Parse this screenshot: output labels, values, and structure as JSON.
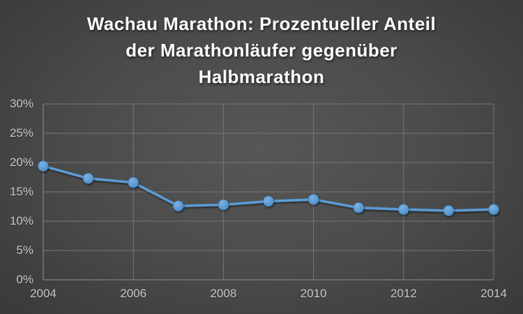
{
  "title": {
    "text": "Wachau Marathon: Prozentueller Anteil der Marathonläufer gegenüber Halbmarathon",
    "lines": [
      "Wachau Marathon: Prozentueller Anteil",
      "der Marathonläufer gegenüber",
      "Halbmarathon"
    ]
  },
  "chart_data": {
    "type": "line",
    "title": "Wachau Marathon: Prozentueller Anteil der Marathonläufer gegenüber Halbmarathon",
    "xlabel": "",
    "ylabel": "",
    "unit": "%",
    "x": [
      2004,
      2005,
      2006,
      2007,
      2008,
      2009,
      2010,
      2011,
      2012,
      2013,
      2014
    ],
    "values": [
      19.4,
      17.3,
      16.6,
      12.6,
      12.8,
      13.4,
      13.7,
      12.3,
      12.0,
      11.8,
      12.0
    ],
    "xlim": [
      2004,
      2014
    ],
    "ylim": [
      0,
      30
    ],
    "x_ticks": {
      "values": [
        2004,
        2006,
        2008,
        2010,
        2012,
        2014
      ],
      "labels": [
        "2004",
        "2006",
        "2008",
        "2010",
        "2012",
        "2014"
      ]
    },
    "y_ticks": {
      "values": [
        0,
        5,
        10,
        15,
        20,
        25,
        30
      ],
      "labels": [
        "0%",
        "5%",
        "10%",
        "15%",
        "20%",
        "25%",
        "30%"
      ]
    },
    "grid": true,
    "legend": false
  },
  "colors": {
    "line": "#5B9BD5",
    "marker_fill": "#5B9BD5",
    "marker_highlight": "#7BB1E0",
    "marker_edge": "#4480B5",
    "gridline": "#777777",
    "axis_line": "#8E8E8E",
    "tick_label": "#C9C9C9",
    "title_text": "#FCFCFC",
    "background_center": "#575757",
    "background_edge": "#1D1D1D"
  }
}
